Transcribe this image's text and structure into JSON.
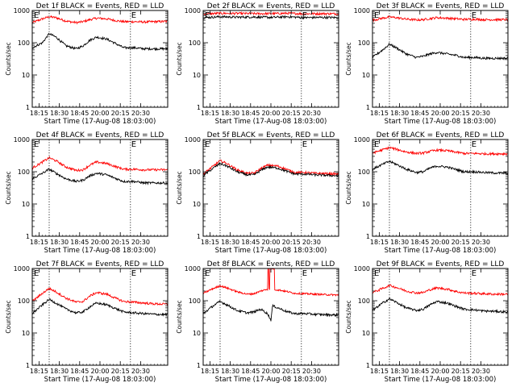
{
  "colors": {
    "events": "#000000",
    "lld": "#ff0000",
    "axes": "#000000",
    "background": "#ffffff"
  },
  "common": {
    "xlabel": "Start Time (17-Aug-08 18:03:00)",
    "ylabel": "Counts/sec",
    "xticks": [
      "18:15",
      "18:30",
      "18:45",
      "20:00",
      "20:15",
      "20:30"
    ],
    "xlim_minutes": [
      0,
      40
    ],
    "xtick_minutes": [
      2,
      8,
      14,
      20,
      26,
      32
    ],
    "marker_minutes": [
      5,
      29
    ],
    "marker_label": "E",
    "yscale": "log",
    "ylim": [
      1,
      1000
    ],
    "yticks": [
      "1",
      "10",
      "100",
      "1000"
    ]
  },
  "chart_data": [
    {
      "type": "line",
      "title": "Det 1f BLACK = Events, RED = LLD",
      "series": [
        {
          "name": "Events",
          "color": "#000000",
          "x": [
            0,
            3,
            5,
            7,
            10,
            13,
            15,
            17,
            19,
            22,
            25,
            27,
            30,
            33,
            36,
            40
          ],
          "values": [
            70,
            100,
            190,
            150,
            80,
            65,
            80,
            120,
            150,
            130,
            90,
            70,
            70,
            65,
            65,
            65
          ]
        },
        {
          "name": "LLD",
          "color": "#ff0000",
          "x": [
            0,
            3,
            5,
            7,
            10,
            13,
            15,
            17,
            19,
            22,
            25,
            27,
            30,
            33,
            36,
            40
          ],
          "values": [
            420,
            550,
            640,
            600,
            470,
            420,
            450,
            520,
            580,
            550,
            480,
            450,
            450,
            440,
            450,
            460
          ]
        }
      ]
    },
    {
      "type": "line",
      "title": "Det 2f BLACK = Events, RED = LLD",
      "series": [
        {
          "name": "Events",
          "color": "#000000",
          "x": [
            0,
            5,
            10,
            15,
            20,
            25,
            30,
            35,
            40
          ],
          "values": [
            600,
            640,
            620,
            630,
            610,
            640,
            600,
            610,
            600
          ]
        },
        {
          "name": "LLD",
          "color": "#ff0000",
          "x": [
            0,
            5,
            10,
            15,
            20,
            25,
            30,
            35,
            40
          ],
          "values": [
            780,
            820,
            810,
            800,
            800,
            820,
            790,
            800,
            790
          ]
        }
      ]
    },
    {
      "type": "line",
      "title": "Det 3f BLACK = Events, RED = LLD",
      "series": [
        {
          "name": "Events",
          "color": "#000000",
          "x": [
            0,
            3,
            5,
            7,
            10,
            13,
            15,
            17,
            19,
            22,
            25,
            27,
            30,
            33,
            36,
            40
          ],
          "values": [
            35,
            60,
            90,
            70,
            45,
            35,
            38,
            45,
            50,
            45,
            40,
            35,
            35,
            33,
            33,
            33
          ]
        },
        {
          "name": "LLD",
          "color": "#ff0000",
          "x": [
            0,
            3,
            5,
            7,
            10,
            13,
            15,
            17,
            19,
            22,
            25,
            27,
            30,
            33,
            36,
            40
          ],
          "values": [
            500,
            580,
            630,
            600,
            540,
            510,
            520,
            560,
            600,
            580,
            550,
            530,
            540,
            520,
            520,
            520
          ]
        }
      ]
    },
    {
      "type": "line",
      "title": "Det 4f BLACK = Events, RED = LLD",
      "series": [
        {
          "name": "Events",
          "color": "#000000",
          "x": [
            0,
            3,
            5,
            7,
            10,
            13,
            15,
            17,
            19,
            22,
            25,
            27,
            30,
            33,
            36,
            40
          ],
          "values": [
            60,
            90,
            120,
            90,
            60,
            50,
            55,
            75,
            90,
            80,
            60,
            50,
            50,
            45,
            45,
            45
          ]
        },
        {
          "name": "LLD",
          "color": "#ff0000",
          "x": [
            0,
            3,
            5,
            7,
            10,
            13,
            15,
            17,
            19,
            22,
            25,
            27,
            30,
            33,
            36,
            40
          ],
          "values": [
            130,
            200,
            270,
            220,
            140,
            110,
            115,
            160,
            200,
            180,
            140,
            120,
            120,
            115,
            115,
            115
          ]
        }
      ]
    },
    {
      "type": "line",
      "title": "Det 5f BLACK = Events, RED = LLD",
      "series": [
        {
          "name": "Events",
          "color": "#000000",
          "x": [
            0,
            3,
            5,
            7,
            10,
            13,
            15,
            17,
            19,
            22,
            25,
            27,
            30,
            33,
            36,
            40
          ],
          "values": [
            75,
            130,
            180,
            150,
            100,
            80,
            80,
            110,
            140,
            130,
            100,
            85,
            85,
            80,
            78,
            75
          ]
        },
        {
          "name": "LLD",
          "color": "#ff0000",
          "x": [
            0,
            3,
            5,
            7,
            10,
            13,
            15,
            17,
            19,
            22,
            25,
            27,
            30,
            33,
            36,
            40
          ],
          "values": [
            85,
            150,
            220,
            180,
            115,
            90,
            90,
            125,
            160,
            150,
            115,
            95,
            95,
            90,
            88,
            85
          ]
        }
      ]
    },
    {
      "type": "line",
      "title": "Det 6f BLACK = Events, RED = LLD",
      "series": [
        {
          "name": "Events",
          "color": "#000000",
          "x": [
            0,
            3,
            5,
            7,
            10,
            13,
            15,
            17,
            19,
            22,
            25,
            27,
            30,
            33,
            36,
            40
          ],
          "values": [
            120,
            170,
            210,
            170,
            120,
            95,
            100,
            130,
            150,
            140,
            115,
            100,
            100,
            95,
            92,
            90
          ]
        },
        {
          "name": "LLD",
          "color": "#ff0000",
          "x": [
            0,
            3,
            5,
            7,
            10,
            13,
            15,
            17,
            19,
            22,
            25,
            27,
            30,
            33,
            36,
            40
          ],
          "values": [
            380,
            480,
            560,
            500,
            410,
            370,
            380,
            430,
            470,
            450,
            400,
            370,
            370,
            360,
            360,
            360
          ]
        }
      ]
    },
    {
      "type": "line",
      "title": "Det 7f BLACK = Events, RED = LLD",
      "series": [
        {
          "name": "Events",
          "color": "#000000",
          "x": [
            0,
            3,
            5,
            7,
            10,
            13,
            15,
            17,
            19,
            22,
            25,
            27,
            30,
            33,
            36,
            40
          ],
          "values": [
            40,
            75,
            110,
            85,
            55,
            42,
            45,
            65,
            85,
            75,
            55,
            45,
            42,
            40,
            38,
            37
          ]
        },
        {
          "name": "LLD",
          "color": "#ff0000",
          "x": [
            0,
            3,
            5,
            7,
            10,
            13,
            15,
            17,
            19,
            22,
            25,
            27,
            30,
            33,
            36,
            40
          ],
          "values": [
            95,
            170,
            240,
            190,
            120,
            90,
            95,
            140,
            180,
            160,
            115,
            95,
            90,
            85,
            80,
            78
          ]
        }
      ]
    },
    {
      "type": "line",
      "title": "Det 8f BLACK = Events, RED = LLD",
      "series": [
        {
          "name": "Events",
          "color": "#000000",
          "x": [
            0,
            3,
            5,
            7,
            10,
            13,
            15,
            17,
            19,
            20,
            20.5,
            23,
            25,
            27,
            30,
            33,
            36,
            40
          ],
          "values": [
            40,
            70,
            95,
            75,
            50,
            42,
            45,
            55,
            40,
            25,
            70,
            55,
            45,
            40,
            40,
            38,
            37,
            36
          ]
        },
        {
          "name": "LLD",
          "color": "#ff0000",
          "x": [
            0,
            3,
            5,
            7,
            10,
            13,
            15,
            17,
            19,
            19.3,
            19.6,
            21,
            21.3,
            21.6,
            23,
            25,
            27,
            30,
            33,
            36,
            40
          ],
          "values": [
            170,
            240,
            290,
            250,
            190,
            160,
            165,
            200,
            230,
            1000,
            230,
            1000,
            220,
            220,
            210,
            190,
            170,
            165,
            160,
            155,
            150
          ]
        }
      ]
    },
    {
      "type": "line",
      "title": "Det 9f BLACK = Events, RED = LLD",
      "series": [
        {
          "name": "Events",
          "color": "#000000",
          "x": [
            0,
            3,
            5,
            7,
            10,
            13,
            15,
            17,
            19,
            22,
            25,
            27,
            30,
            33,
            36,
            40
          ],
          "values": [
            50,
            85,
            115,
            90,
            60,
            50,
            55,
            75,
            95,
            85,
            65,
            55,
            52,
            48,
            47,
            45
          ]
        },
        {
          "name": "LLD",
          "color": "#ff0000",
          "x": [
            0,
            3,
            5,
            7,
            10,
            13,
            15,
            17,
            19,
            22,
            25,
            27,
            30,
            33,
            36,
            40
          ],
          "values": [
            180,
            240,
            300,
            260,
            200,
            175,
            180,
            220,
            250,
            230,
            190,
            175,
            170,
            165,
            160,
            160
          ]
        }
      ]
    }
  ]
}
